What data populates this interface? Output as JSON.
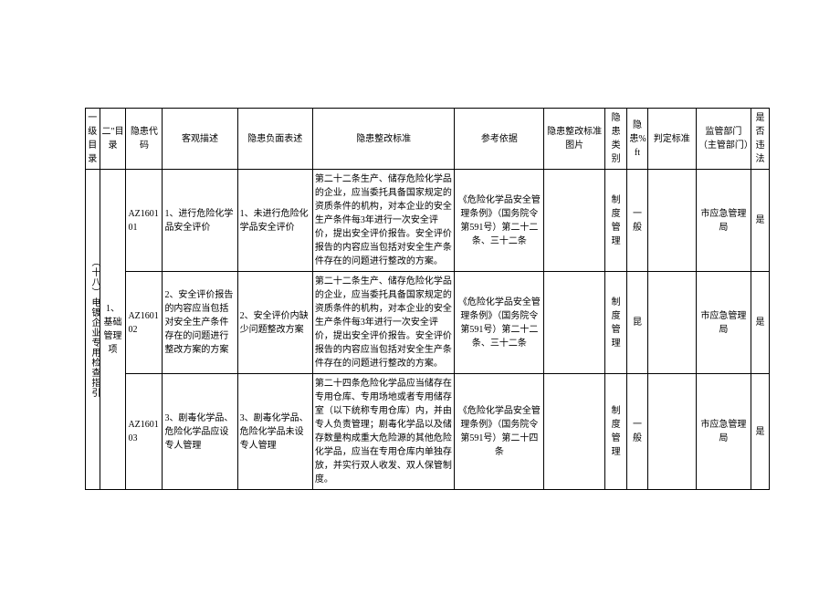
{
  "headers": {
    "l1": "一级目录",
    "l2": "二\"目录",
    "code": "隐患代码",
    "desc": "客观描述",
    "neg": "隐患负面表述",
    "std": "隐患整改标准",
    "ref": "参考依据",
    "img": "隐患整改标准图片",
    "cat": "隐患类别",
    "lvl": "隐患%ft",
    "crit": "判定标准",
    "dept": "监管部门（主管部门）",
    "law": "是否违法"
  },
  "level1": "（十八）电镀企业专用检查指引",
  "level2": "1、基础管理项",
  "rows": [
    {
      "code": "AZ160101",
      "desc": "1、进行危险化学品安全评价",
      "neg": "1、未进行危险化学品安全评价",
      "std": "第二十二条生产、储存危险化学品的企业，应当委托具备国家规定的资质条件的机构，对本企业的安全生产条件每3年进行一次安全评价，提出安全评价报告。安全评价报告的内容应当包括对安全生产条件存在的问题进行整改的方案。",
      "ref": "《危险化学品安全管理条例》（国务院令第591号）第二十二条、三十二条",
      "img": "",
      "cat": "制 度管理",
      "lvl": "一般",
      "crit": "",
      "dept": "市应急管理局",
      "law": "是"
    },
    {
      "code": "AZ160102",
      "desc": "2、安全评价报告的内容应当包括对安全生产条件存在的问题进行整改方案的方案",
      "neg": "2、安全评价内缺少问题整改方案",
      "std": "第二十二条生产、储存危险化学品的企业，应当委托具备国家规定的资质条件的机构，对本企业的安全生产条件每3年进行一次安全评价，提出安全评价报告。安全评价报告的内容应当包括对安全生产条件存在的问题进行整改的方案。",
      "ref": "《危险化学品安全管理条例》（国务院令第591号）第二十二条、三十二条",
      "img": "",
      "cat": "制 度管理",
      "lvl": "昆",
      "crit": "",
      "dept": "市应急管理局",
      "law": "是"
    },
    {
      "code": "AZ160103",
      "desc": "3、剧毒化学品、危险化学品应设专人管理",
      "neg": "3、剧毒化学品、危险化学品未设专人管理",
      "std": "第二十四条危险化学品应当储存在专用仓库、专用场地或者专用储存室（以下统称专用仓库）内，并由专人负责管理；剧毒化学品以及储存数量构成重大危险源的其他危险化学品，应当在专用仓库内单独存放，并实行双人收发、双人保管制度。",
      "ref": "《危险化学品安全管理条例》（国务院令第591号）第二十四条",
      "img": "",
      "cat": "制 度管理",
      "lvl": "一般",
      "crit": "",
      "dept": "市应急管理局",
      "law": "是"
    }
  ]
}
